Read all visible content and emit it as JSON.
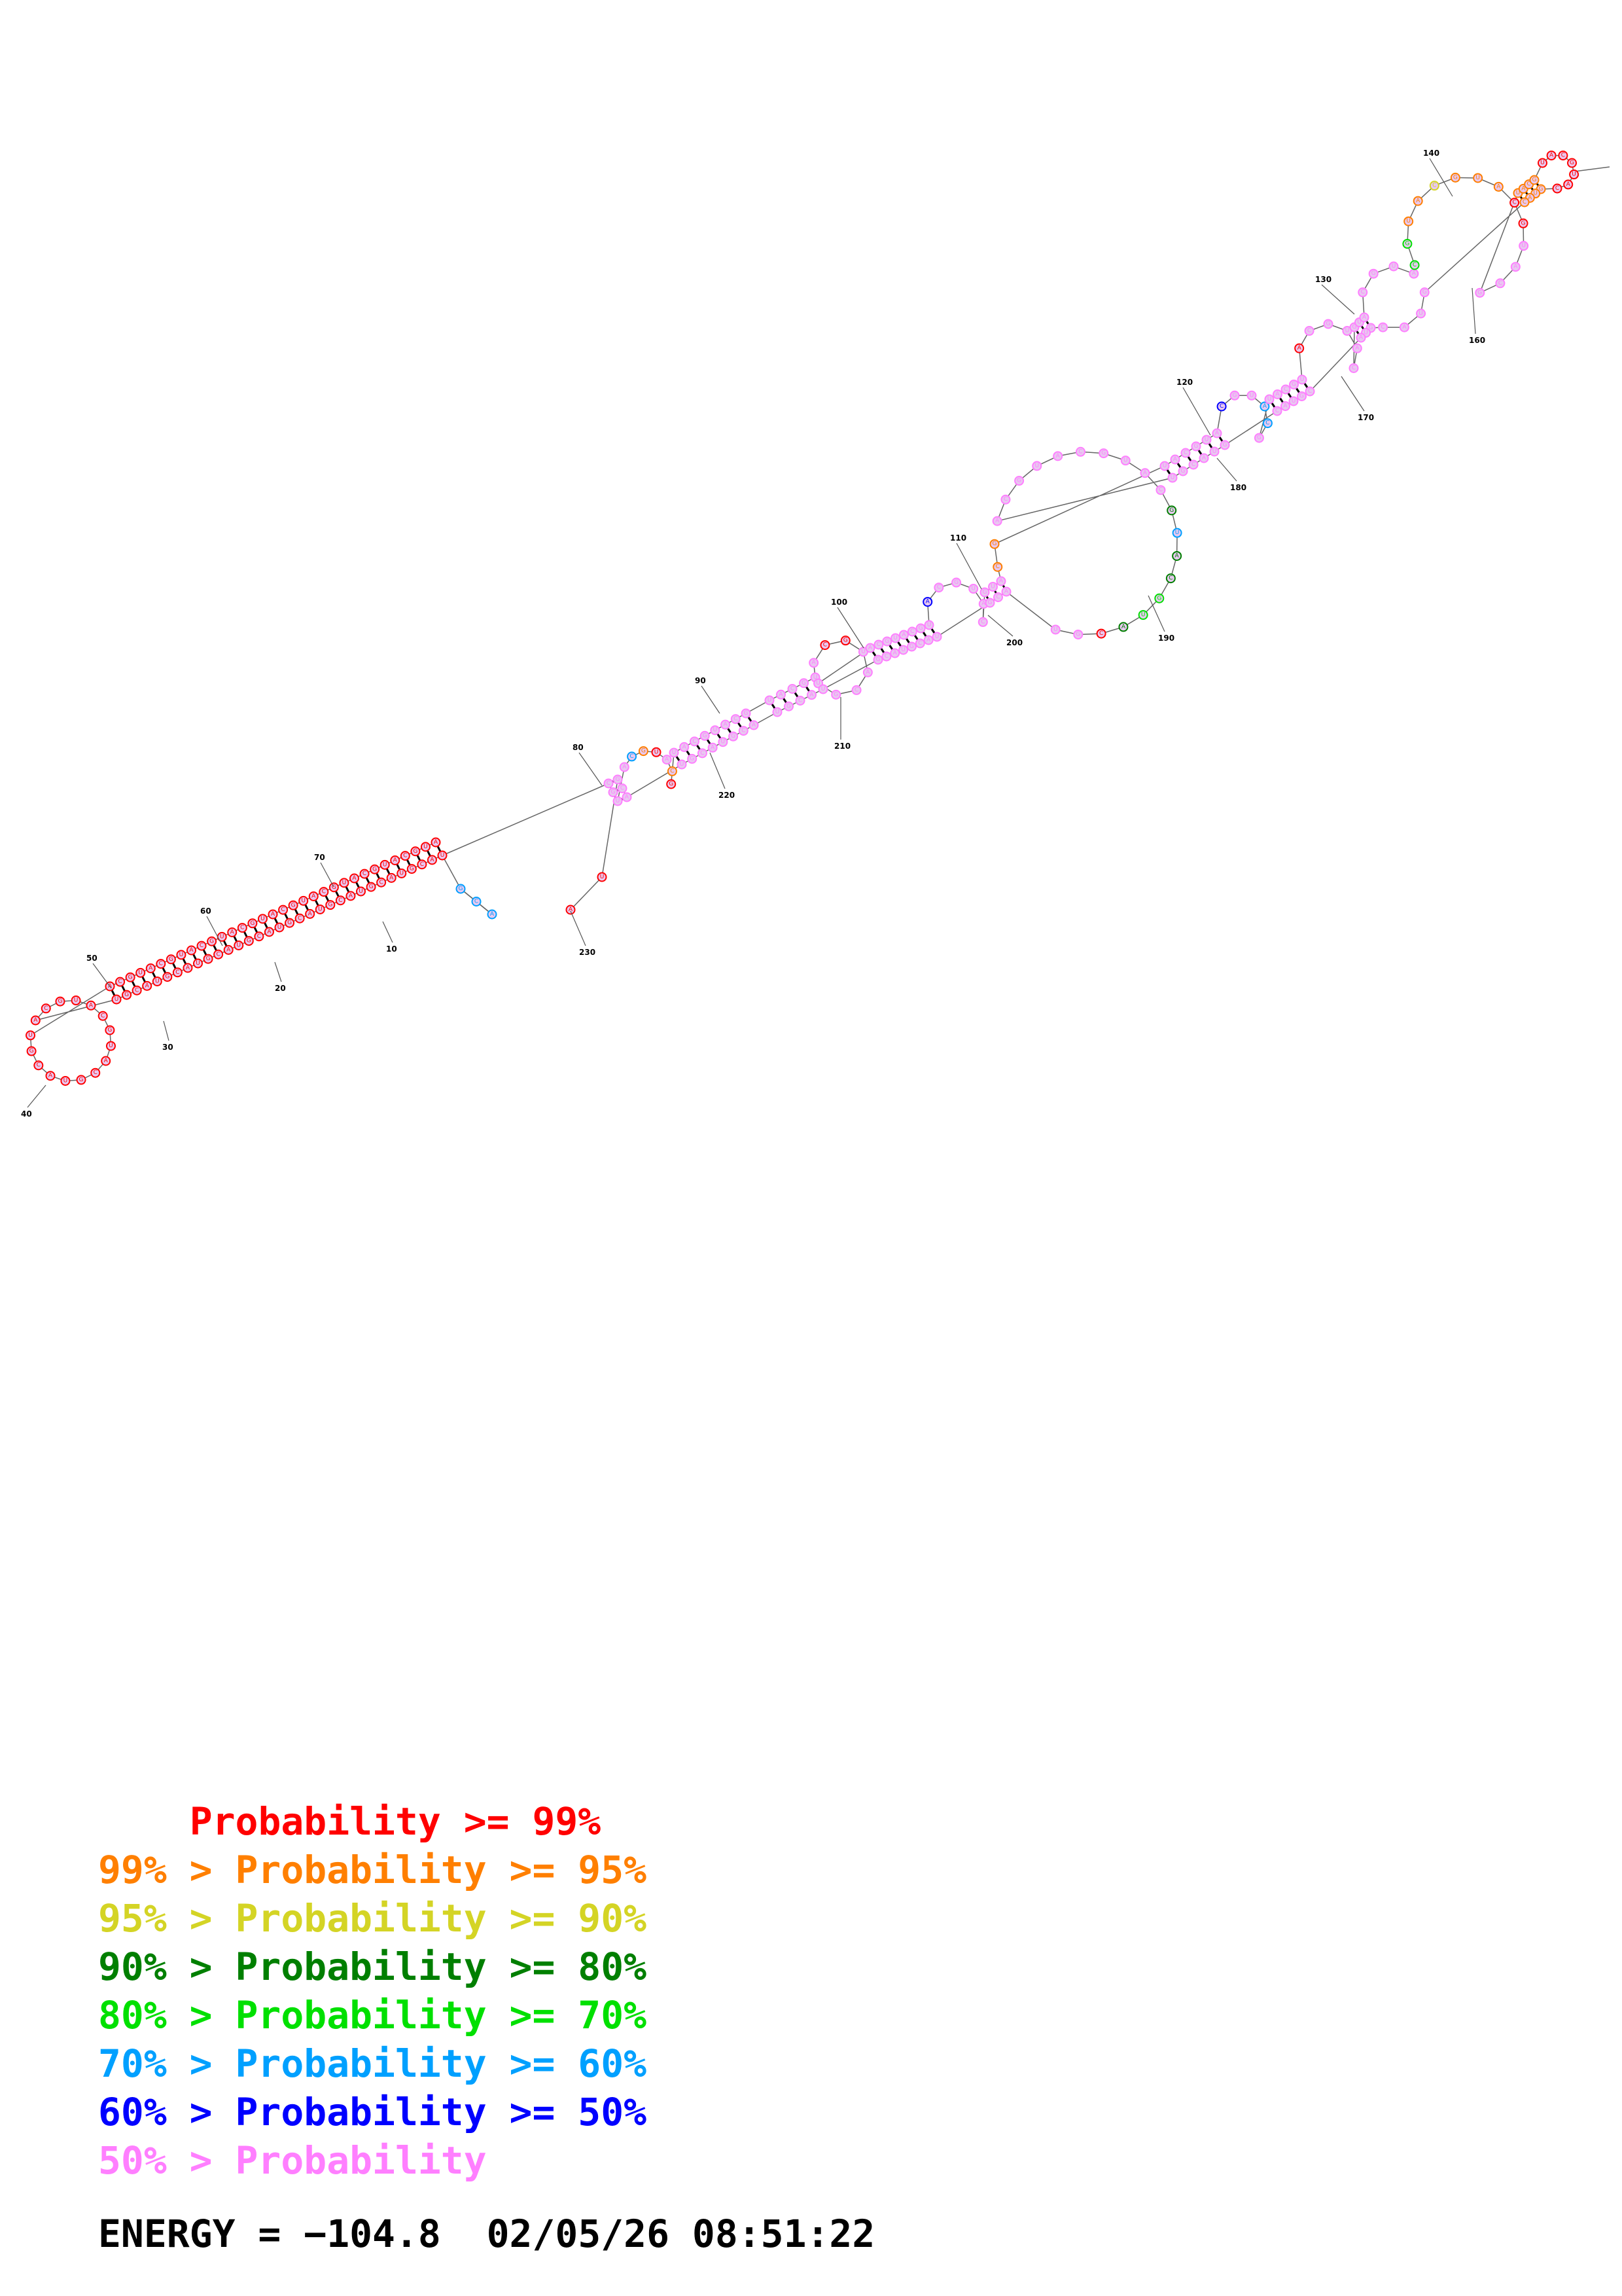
{
  "colors": {
    "p99": "#ff0000",
    "p95": "#ff7f00",
    "p90": "#d4d425",
    "p80": "#007f00",
    "p70": "#00e000",
    "p60": "#00a0ff",
    "p50": "#0000ff",
    "plow": "#ff7fff"
  },
  "position_labels": [
    "10",
    "20",
    "30",
    "40",
    "50",
    "60",
    "70",
    "80",
    "90",
    "100",
    "110",
    "120",
    "130",
    "140",
    "160",
    "170",
    "180",
    "190",
    "200",
    "210",
    "220",
    "230"
  ],
  "legend": [
    {
      "prefix": "    ",
      "text": "Probability >= 99%",
      "color": "#ff0000"
    },
    {
      "prefix": "99% > ",
      "text": "Probability >= 95%",
      "color": "#ff7f00"
    },
    {
      "prefix": "95% > ",
      "text": "Probability >= 90%",
      "color": "#d4d425"
    },
    {
      "prefix": "90% > ",
      "text": "Probability >= 80%",
      "color": "#007f00"
    },
    {
      "prefix": "80% > ",
      "text": "Probability >= 70%",
      "color": "#00e000"
    },
    {
      "prefix": "70% > ",
      "text": "Probability >= 60%",
      "color": "#00a0ff"
    },
    {
      "prefix": "60% > ",
      "text": "Probability >= 50%",
      "color": "#0000ff"
    },
    {
      "prefix": "50% > ",
      "text": "Probability",
      "color": "#ff7fff"
    }
  ],
  "energy": {
    "label": "ENERGY = ",
    "value": "−104.8",
    "date": "02/05/26",
    "time": "08:51:22"
  }
}
